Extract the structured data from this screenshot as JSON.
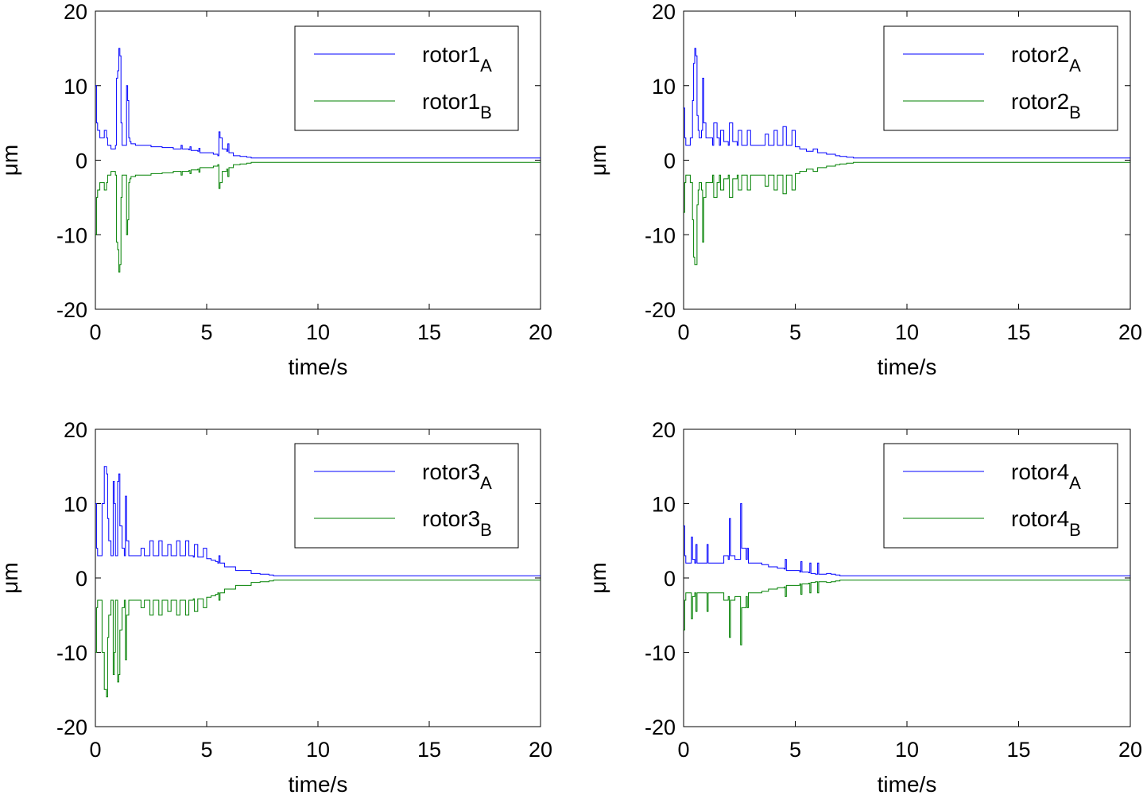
{
  "figure": {
    "grid": false
  },
  "chart_data": [
    {
      "type": "line",
      "xlabel": "time/s",
      "ylabel": "μm",
      "xlim": [
        0,
        20
      ],
      "ylim": [
        -20,
        20
      ],
      "xticks": [
        "0",
        "5",
        "10",
        "15",
        "20"
      ],
      "yticks": [
        "20",
        "10",
        "0",
        "-10",
        "-20"
      ],
      "legend_position": "top-right",
      "series": [
        {
          "name": "rotor1",
          "sub": "A",
          "color": "#0000ff",
          "x": [
            0,
            0.05,
            0.1,
            0.2,
            0.3,
            0.4,
            0.5,
            0.55,
            0.6,
            0.7,
            0.8,
            0.9,
            0.95,
            1.0,
            1.05,
            1.1,
            1.15,
            1.2,
            1.3,
            1.4,
            1.45,
            1.5,
            1.55,
            1.6,
            1.8,
            2.0,
            2.5,
            3.0,
            3.5,
            3.8,
            3.85,
            3.9,
            4.2,
            4.25,
            4.3,
            4.6,
            4.65,
            4.7,
            5.0,
            5.3,
            5.5,
            5.55,
            5.6,
            5.7,
            5.9,
            5.95,
            6.0,
            6.2,
            6.5,
            6.8,
            7.0,
            20
          ],
          "y": [
            10,
            5,
            4,
            3,
            3,
            4,
            3,
            2,
            2,
            1.5,
            1.5,
            2,
            11,
            12,
            15,
            14,
            5,
            2,
            2,
            10,
            8,
            3,
            2.5,
            2.2,
            2,
            2,
            1.8,
            1.7,
            1.5,
            1.5,
            2,
            1.5,
            1.4,
            1.8,
            1.3,
            1.2,
            1.6,
            1.0,
            1.0,
            0.8,
            0.6,
            3.8,
            3,
            1.5,
            1.2,
            2.2,
            1,
            0.6,
            0.5,
            0.4,
            0.3,
            0.3
          ]
        },
        {
          "name": "rotor1",
          "sub": "B",
          "color": "#008000",
          "x": [
            0,
            0.05,
            0.1,
            0.2,
            0.3,
            0.4,
            0.5,
            0.55,
            0.6,
            0.7,
            0.8,
            0.9,
            0.95,
            1.0,
            1.05,
            1.1,
            1.15,
            1.2,
            1.3,
            1.4,
            1.45,
            1.5,
            1.55,
            1.6,
            1.8,
            2.0,
            2.5,
            3.0,
            3.5,
            3.8,
            3.85,
            3.9,
            4.2,
            4.25,
            4.3,
            4.6,
            4.65,
            4.7,
            5.0,
            5.3,
            5.5,
            5.55,
            5.6,
            5.7,
            5.9,
            5.95,
            6.0,
            6.2,
            6.5,
            6.8,
            7.0,
            20
          ],
          "y": [
            -10,
            -5,
            -4,
            -3,
            -3,
            -4,
            -3,
            -2,
            -2,
            -1.5,
            -1.5,
            -2,
            -11,
            -12,
            -15,
            -14,
            -5,
            -2,
            -2,
            -10,
            -8,
            -3,
            -2.5,
            -2.2,
            -2,
            -2,
            -1.8,
            -1.7,
            -1.5,
            -1.5,
            -2,
            -1.5,
            -1.4,
            -1.8,
            -1.3,
            -1.2,
            -1.6,
            -1.0,
            -1.0,
            -0.8,
            -0.6,
            -3.8,
            -3,
            -1.5,
            -1.2,
            -2.2,
            -1,
            -0.6,
            -0.5,
            -0.4,
            -0.3,
            -0.3
          ]
        }
      ]
    },
    {
      "type": "line",
      "xlabel": "time/s",
      "ylabel": "μm",
      "xlim": [
        0,
        20
      ],
      "ylim": [
        -20,
        20
      ],
      "xticks": [
        "0",
        "5",
        "10",
        "15",
        "20"
      ],
      "yticks": [
        "20",
        "10",
        "0",
        "-10",
        "-20"
      ],
      "legend_position": "top-right",
      "series": [
        {
          "name": "rotor2",
          "sub": "A",
          "color": "#0000ff",
          "x": [
            0,
            0.05,
            0.1,
            0.2,
            0.3,
            0.4,
            0.45,
            0.5,
            0.55,
            0.6,
            0.65,
            0.7,
            0.8,
            0.85,
            0.9,
            1.0,
            1.2,
            1.3,
            1.35,
            1.5,
            1.6,
            1.65,
            1.8,
            2.0,
            2.05,
            2.2,
            2.4,
            2.45,
            2.6,
            2.8,
            2.85,
            3.0,
            3.4,
            3.6,
            3.65,
            3.8,
            4.0,
            4.05,
            4.2,
            4.4,
            4.45,
            4.6,
            4.8,
            4.85,
            5.0,
            5.2,
            5.4,
            5.5,
            5.6,
            5.8,
            6.0,
            6.2,
            6.4,
            6.6,
            6.8,
            7.0,
            7.3,
            7.6,
            20
          ],
          "y": [
            7,
            3,
            2,
            2,
            3,
            8,
            13,
            15,
            14,
            6,
            4,
            3,
            4,
            11,
            5,
            3,
            3,
            2,
            5,
            3,
            2,
            4,
            2.5,
            2,
            5,
            2.5,
            2,
            4,
            2,
            2,
            4,
            2,
            2,
            2,
            3.5,
            2,
            2,
            4,
            2,
            2,
            4.5,
            2,
            2,
            4,
            1.8,
            1.5,
            1.5,
            1.2,
            1.2,
            1.5,
            1.0,
            1.0,
            0.8,
            0.8,
            0.6,
            0.5,
            0.4,
            0.3,
            0.3
          ]
        },
        {
          "name": "rotor2",
          "sub": "B",
          "color": "#008000",
          "x": [
            0,
            0.05,
            0.1,
            0.2,
            0.3,
            0.4,
            0.45,
            0.5,
            0.55,
            0.6,
            0.65,
            0.7,
            0.8,
            0.85,
            0.9,
            1.0,
            1.2,
            1.3,
            1.35,
            1.5,
            1.6,
            1.65,
            1.8,
            2.0,
            2.05,
            2.2,
            2.4,
            2.45,
            2.6,
            2.8,
            2.85,
            3.0,
            3.4,
            3.6,
            3.65,
            3.8,
            4.0,
            4.05,
            4.2,
            4.4,
            4.45,
            4.6,
            4.8,
            4.85,
            5.0,
            5.2,
            5.4,
            5.5,
            5.6,
            5.8,
            6.0,
            6.2,
            6.4,
            6.6,
            6.8,
            7.0,
            7.3,
            7.6,
            20
          ],
          "y": [
            -7,
            -3,
            -2,
            -2,
            -3,
            -8,
            -13,
            -14,
            -14,
            -6,
            -4,
            -3,
            -4,
            -11,
            -5,
            -3,
            -3,
            -2,
            -5,
            -3,
            -2,
            -4,
            -2.5,
            -2,
            -5,
            -2.5,
            -2,
            -4,
            -2,
            -2,
            -4,
            -2,
            -2,
            -2,
            -3.5,
            -2,
            -2,
            -4,
            -2,
            -2,
            -4.5,
            -2,
            -2,
            -4,
            -1.8,
            -1.5,
            -1.5,
            -1.2,
            -1.2,
            -1.5,
            -1.0,
            -1.0,
            -0.8,
            -0.8,
            -0.6,
            -0.5,
            -0.4,
            -0.3,
            -0.3
          ]
        }
      ]
    },
    {
      "type": "line",
      "xlabel": "time/s",
      "ylabel": "μm",
      "xlim": [
        0,
        20
      ],
      "ylim": [
        -20,
        20
      ],
      "xticks": [
        "0",
        "5",
        "10",
        "15",
        "20"
      ],
      "yticks": [
        "20",
        "10",
        "0",
        "-10",
        "-20"
      ],
      "legend_position": "top-right",
      "series": [
        {
          "name": "rotor3",
          "sub": "A",
          "color": "#0000ff",
          "x": [
            0,
            0.05,
            0.1,
            0.2,
            0.3,
            0.4,
            0.5,
            0.55,
            0.6,
            0.7,
            0.8,
            0.85,
            0.9,
            1.0,
            1.05,
            1.1,
            1.2,
            1.3,
            1.35,
            1.4,
            1.5,
            1.8,
            2.0,
            2.05,
            2.2,
            2.4,
            2.45,
            2.6,
            2.8,
            2.85,
            3.0,
            3.2,
            3.25,
            3.4,
            3.6,
            3.65,
            3.8,
            4.0,
            4.05,
            4.2,
            4.4,
            4.45,
            4.6,
            4.8,
            4.85,
            5.0,
            5.2,
            5.4,
            5.5,
            5.55,
            5.6,
            5.8,
            6.0,
            6.3,
            6.6,
            7.0,
            7.4,
            7.8,
            8.0,
            20
          ],
          "y": [
            10,
            4,
            3,
            3,
            10,
            15,
            14,
            8,
            5,
            3,
            13,
            10,
            3,
            13,
            14,
            7,
            4,
            3,
            11,
            5,
            3,
            3,
            3,
            4,
            3,
            3,
            5,
            3,
            3,
            5,
            3,
            3,
            4.5,
            3,
            3,
            5,
            3,
            3,
            5,
            3,
            2.8,
            4.5,
            2.8,
            2.8,
            4,
            2.6,
            2.4,
            2.2,
            2,
            3,
            2,
            1.5,
            1.5,
            1,
            1,
            0.6,
            0.5,
            0.4,
            0.3,
            0.3
          ]
        },
        {
          "name": "rotor3",
          "sub": "B",
          "color": "#008000",
          "x": [
            0,
            0.05,
            0.1,
            0.2,
            0.3,
            0.4,
            0.5,
            0.55,
            0.6,
            0.7,
            0.8,
            0.85,
            0.9,
            1.0,
            1.05,
            1.1,
            1.2,
            1.3,
            1.35,
            1.4,
            1.5,
            1.8,
            2.0,
            2.05,
            2.2,
            2.4,
            2.45,
            2.6,
            2.8,
            2.85,
            3.0,
            3.2,
            3.25,
            3.4,
            3.6,
            3.65,
            3.8,
            4.0,
            4.05,
            4.2,
            4.4,
            4.45,
            4.6,
            4.8,
            4.85,
            5.0,
            5.2,
            5.4,
            5.5,
            5.55,
            5.6,
            5.8,
            6.0,
            6.3,
            6.6,
            7.0,
            7.4,
            7.8,
            8.0,
            20
          ],
          "y": [
            -10,
            -4,
            -3,
            -3,
            -10,
            -15,
            -16,
            -8,
            -5,
            -3,
            -13,
            -10,
            -3,
            -14,
            -13,
            -7,
            -4,
            -3,
            -11,
            -5,
            -3,
            -3,
            -3,
            -4,
            -3,
            -3,
            -5,
            -3,
            -3,
            -5,
            -3,
            -3,
            -4.5,
            -3,
            -3,
            -5,
            -3,
            -3,
            -5,
            -3,
            -2.8,
            -4.5,
            -2.8,
            -2.8,
            -4,
            -2.6,
            -2.4,
            -2.2,
            -2,
            -3,
            -2,
            -1.5,
            -1.5,
            -1,
            -1,
            -0.6,
            -0.5,
            -0.4,
            -0.3,
            -0.3
          ]
        }
      ]
    },
    {
      "type": "line",
      "xlabel": "time/s",
      "ylabel": "μm",
      "xlim": [
        0,
        20
      ],
      "ylim": [
        -20,
        20
      ],
      "xticks": [
        "0",
        "5",
        "10",
        "15",
        "20"
      ],
      "yticks": [
        "20",
        "10",
        "0",
        "-10",
        "-20"
      ],
      "legend_position": "top-right",
      "series": [
        {
          "name": "rotor4",
          "sub": "A",
          "color": "#0000ff",
          "x": [
            0,
            0.05,
            0.1,
            0.2,
            0.3,
            0.35,
            0.4,
            0.5,
            0.55,
            0.6,
            0.8,
            1.0,
            1.05,
            1.1,
            1.3,
            1.5,
            1.8,
            2.0,
            2.05,
            2.1,
            2.3,
            2.5,
            2.55,
            2.6,
            2.8,
            2.85,
            2.9,
            3.2,
            3.5,
            3.8,
            4.2,
            4.5,
            4.55,
            4.6,
            5.0,
            5.2,
            5.25,
            5.3,
            5.6,
            5.65,
            5.7,
            5.9,
            6.0,
            6.05,
            6.1,
            6.4,
            6.6,
            6.8,
            7.0,
            20
          ],
          "y": [
            7,
            3,
            2,
            2,
            2,
            5.5,
            2.5,
            2,
            4.5,
            2,
            2,
            2,
            4.5,
            2,
            2,
            2,
            3,
            2.5,
            8,
            3,
            2.5,
            2.5,
            10,
            4,
            2.5,
            4,
            2,
            2,
            1.8,
            1.5,
            1.3,
            1.2,
            2.5,
            1,
            1,
            0.8,
            2.2,
            0.8,
            0.7,
            2,
            0.6,
            0.5,
            2,
            0.5,
            0.5,
            0.6,
            0.5,
            0.4,
            0.3,
            0.3
          ]
        },
        {
          "name": "rotor4",
          "sub": "B",
          "color": "#008000",
          "x": [
            0,
            0.05,
            0.1,
            0.2,
            0.3,
            0.35,
            0.4,
            0.5,
            0.55,
            0.6,
            0.8,
            1.0,
            1.05,
            1.1,
            1.3,
            1.5,
            1.8,
            2.0,
            2.05,
            2.1,
            2.3,
            2.5,
            2.55,
            2.6,
            2.8,
            2.85,
            2.9,
            3.2,
            3.5,
            3.8,
            4.2,
            4.5,
            4.55,
            4.6,
            5.0,
            5.2,
            5.25,
            5.3,
            5.6,
            5.65,
            5.7,
            5.9,
            6.0,
            6.05,
            6.1,
            6.4,
            6.6,
            6.8,
            7.0,
            20
          ],
          "y": [
            -7,
            -3,
            -2,
            -2,
            -2,
            -5.5,
            -2.5,
            -2,
            -4.5,
            -2,
            -2,
            -2,
            -4.5,
            -2,
            -2,
            -2,
            -3,
            -2.5,
            -8,
            -3,
            -2.5,
            -2.5,
            -9,
            -4,
            -2.5,
            -4,
            -2,
            -2,
            -1.8,
            -1.5,
            -1.3,
            -1.2,
            -2.5,
            -1,
            -1,
            -0.8,
            -2.2,
            -0.8,
            -0.7,
            -2,
            -0.6,
            -0.5,
            -2,
            -0.5,
            -0.5,
            -0.6,
            -0.5,
            -0.4,
            -0.3,
            -0.3
          ]
        }
      ]
    }
  ]
}
